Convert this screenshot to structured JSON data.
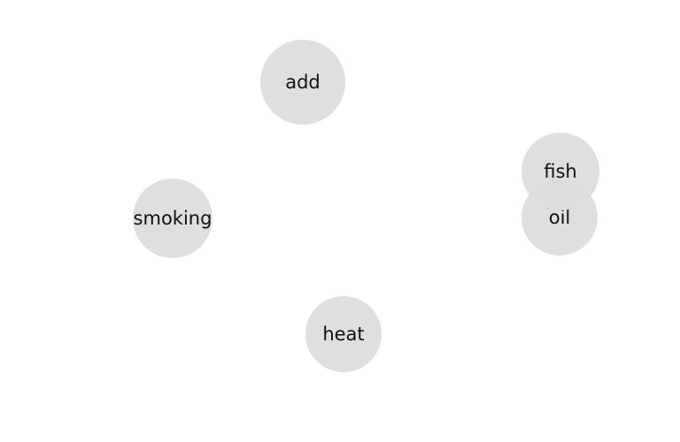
{
  "graph": {
    "nodes": [
      {
        "id": "add",
        "label": "add"
      },
      {
        "id": "smoking",
        "label": "smoking"
      },
      {
        "id": "heat",
        "label": "heat"
      },
      {
        "id": "fish",
        "label": "fish"
      },
      {
        "id": "oil",
        "label": "oil"
      }
    ],
    "edges": [
      {
        "source": "fish",
        "target": "oil"
      }
    ],
    "colors": {
      "node_fill": "#dcdcdc",
      "edge": "#a3a3a3",
      "text": "#111111"
    }
  }
}
